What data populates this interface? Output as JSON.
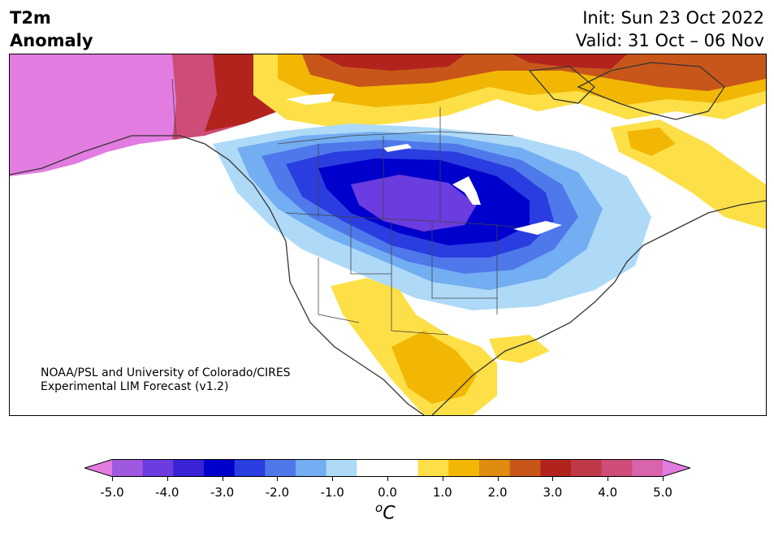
{
  "header": {
    "title_line1": "T2m",
    "title_line2": "Anomaly",
    "init": "Init: Sun 23 Oct 2022",
    "valid": "Valid: 31 Oct – 06 Nov"
  },
  "credit": {
    "line1": "NOAA/PSL and University of Colorado/CIRES",
    "line2": "Experimental LIM Forecast (v1.2)"
  },
  "colorbar": {
    "unit_base": "C",
    "unit_sup": "o",
    "ticks": [
      "-5.0",
      "-4.0",
      "-3.0",
      "-2.0",
      "-1.0",
      "0.0",
      "1.0",
      "2.0",
      "3.0",
      "4.0",
      "5.0"
    ],
    "colors": [
      "#e37ce0",
      "#9f59e0",
      "#6b3cdf",
      "#3a22d6",
      "#0000cc",
      "#2a3de0",
      "#4f78ea",
      "#73adf2",
      "#aedaf8",
      "#ffffff",
      "#ffffff",
      "#fde047",
      "#f2b705",
      "#de8b10",
      "#c8561a",
      "#b2231e",
      "#c0394a",
      "#cd4c78",
      "#d864ab",
      "#e37ce0"
    ]
  },
  "legend_colors": {
    "warm_extreme": "#e37ce0",
    "cold_core": "#0000cc"
  }
}
